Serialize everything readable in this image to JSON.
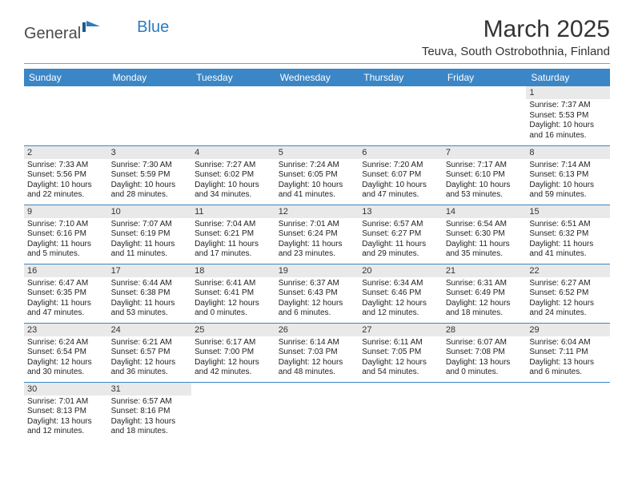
{
  "brand": {
    "general": "General",
    "blue": "Blue",
    "flag_color": "#2b7bbf"
  },
  "title": "March 2025",
  "location": "Teuva, South Ostrobothnia, Finland",
  "header_bg": "#3b86c6",
  "header_fg": "#ffffff",
  "daynum_bg": "#e9e9e9",
  "row_border": "#3b86c6",
  "weekdays": [
    "Sunday",
    "Monday",
    "Tuesday",
    "Wednesday",
    "Thursday",
    "Friday",
    "Saturday"
  ],
  "weeks": [
    [
      null,
      null,
      null,
      null,
      null,
      null,
      {
        "n": 1,
        "sunrise": "7:37 AM",
        "sunset": "5:53 PM",
        "daylight": "10 hours and 16 minutes."
      }
    ],
    [
      {
        "n": 2,
        "sunrise": "7:33 AM",
        "sunset": "5:56 PM",
        "daylight": "10 hours and 22 minutes."
      },
      {
        "n": 3,
        "sunrise": "7:30 AM",
        "sunset": "5:59 PM",
        "daylight": "10 hours and 28 minutes."
      },
      {
        "n": 4,
        "sunrise": "7:27 AM",
        "sunset": "6:02 PM",
        "daylight": "10 hours and 34 minutes."
      },
      {
        "n": 5,
        "sunrise": "7:24 AM",
        "sunset": "6:05 PM",
        "daylight": "10 hours and 41 minutes."
      },
      {
        "n": 6,
        "sunrise": "7:20 AM",
        "sunset": "6:07 PM",
        "daylight": "10 hours and 47 minutes."
      },
      {
        "n": 7,
        "sunrise": "7:17 AM",
        "sunset": "6:10 PM",
        "daylight": "10 hours and 53 minutes."
      },
      {
        "n": 8,
        "sunrise": "7:14 AM",
        "sunset": "6:13 PM",
        "daylight": "10 hours and 59 minutes."
      }
    ],
    [
      {
        "n": 9,
        "sunrise": "7:10 AM",
        "sunset": "6:16 PM",
        "daylight": "11 hours and 5 minutes."
      },
      {
        "n": 10,
        "sunrise": "7:07 AM",
        "sunset": "6:19 PM",
        "daylight": "11 hours and 11 minutes."
      },
      {
        "n": 11,
        "sunrise": "7:04 AM",
        "sunset": "6:21 PM",
        "daylight": "11 hours and 17 minutes."
      },
      {
        "n": 12,
        "sunrise": "7:01 AM",
        "sunset": "6:24 PM",
        "daylight": "11 hours and 23 minutes."
      },
      {
        "n": 13,
        "sunrise": "6:57 AM",
        "sunset": "6:27 PM",
        "daylight": "11 hours and 29 minutes."
      },
      {
        "n": 14,
        "sunrise": "6:54 AM",
        "sunset": "6:30 PM",
        "daylight": "11 hours and 35 minutes."
      },
      {
        "n": 15,
        "sunrise": "6:51 AM",
        "sunset": "6:32 PM",
        "daylight": "11 hours and 41 minutes."
      }
    ],
    [
      {
        "n": 16,
        "sunrise": "6:47 AM",
        "sunset": "6:35 PM",
        "daylight": "11 hours and 47 minutes."
      },
      {
        "n": 17,
        "sunrise": "6:44 AM",
        "sunset": "6:38 PM",
        "daylight": "11 hours and 53 minutes."
      },
      {
        "n": 18,
        "sunrise": "6:41 AM",
        "sunset": "6:41 PM",
        "daylight": "12 hours and 0 minutes."
      },
      {
        "n": 19,
        "sunrise": "6:37 AM",
        "sunset": "6:43 PM",
        "daylight": "12 hours and 6 minutes."
      },
      {
        "n": 20,
        "sunrise": "6:34 AM",
        "sunset": "6:46 PM",
        "daylight": "12 hours and 12 minutes."
      },
      {
        "n": 21,
        "sunrise": "6:31 AM",
        "sunset": "6:49 PM",
        "daylight": "12 hours and 18 minutes."
      },
      {
        "n": 22,
        "sunrise": "6:27 AM",
        "sunset": "6:52 PM",
        "daylight": "12 hours and 24 minutes."
      }
    ],
    [
      {
        "n": 23,
        "sunrise": "6:24 AM",
        "sunset": "6:54 PM",
        "daylight": "12 hours and 30 minutes."
      },
      {
        "n": 24,
        "sunrise": "6:21 AM",
        "sunset": "6:57 PM",
        "daylight": "12 hours and 36 minutes."
      },
      {
        "n": 25,
        "sunrise": "6:17 AM",
        "sunset": "7:00 PM",
        "daylight": "12 hours and 42 minutes."
      },
      {
        "n": 26,
        "sunrise": "6:14 AM",
        "sunset": "7:03 PM",
        "daylight": "12 hours and 48 minutes."
      },
      {
        "n": 27,
        "sunrise": "6:11 AM",
        "sunset": "7:05 PM",
        "daylight": "12 hours and 54 minutes."
      },
      {
        "n": 28,
        "sunrise": "6:07 AM",
        "sunset": "7:08 PM",
        "daylight": "13 hours and 0 minutes."
      },
      {
        "n": 29,
        "sunrise": "6:04 AM",
        "sunset": "7:11 PM",
        "daylight": "13 hours and 6 minutes."
      }
    ],
    [
      {
        "n": 30,
        "sunrise": "7:01 AM",
        "sunset": "8:13 PM",
        "daylight": "13 hours and 12 minutes."
      },
      {
        "n": 31,
        "sunrise": "6:57 AM",
        "sunset": "8:16 PM",
        "daylight": "13 hours and 18 minutes."
      },
      null,
      null,
      null,
      null,
      null
    ]
  ],
  "labels": {
    "sunrise": "Sunrise:",
    "sunset": "Sunset:",
    "daylight": "Daylight:"
  }
}
